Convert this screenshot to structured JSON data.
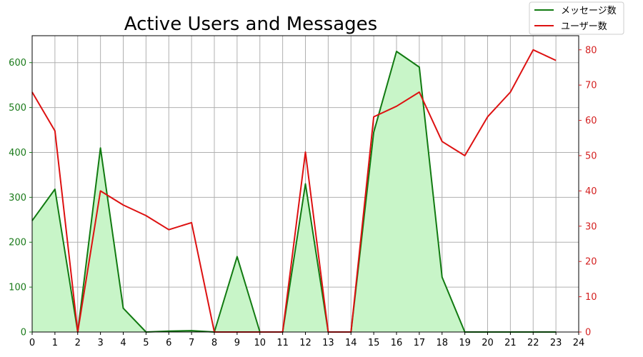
{
  "chart_data": {
    "type": "line",
    "title": "Active Users and Messages",
    "x": [
      0,
      1,
      2,
      3,
      4,
      5,
      6,
      7,
      8,
      9,
      10,
      11,
      12,
      13,
      14,
      15,
      16,
      17,
      18,
      19,
      20,
      21,
      22,
      23
    ],
    "xlim": [
      0,
      24
    ],
    "xticks": [
      0,
      1,
      2,
      3,
      4,
      5,
      6,
      7,
      8,
      9,
      10,
      11,
      12,
      13,
      14,
      15,
      16,
      17,
      18,
      19,
      20,
      21,
      22,
      23,
      24
    ],
    "grid": true,
    "legend_position": "top-right",
    "y_left": {
      "lim": [
        0,
        660
      ],
      "ticks": [
        0,
        100,
        200,
        300,
        400,
        500,
        600
      ],
      "color": "#1a7a1a"
    },
    "y_right": {
      "lim": [
        0,
        84
      ],
      "ticks": [
        0,
        10,
        20,
        30,
        40,
        50,
        60,
        70,
        80
      ],
      "color": "#d42020"
    },
    "series": [
      {
        "name": "メッセージ数",
        "axis": "left",
        "color": "#117a11",
        "fill": "#c8f5c8",
        "values": [
          248,
          318,
          0,
          410,
          53,
          0,
          2,
          3,
          0,
          168,
          0,
          0,
          330,
          0,
          0,
          445,
          625,
          590,
          122,
          0,
          0,
          0,
          0,
          0
        ]
      },
      {
        "name": "ユーザー数",
        "axis": "right",
        "color": "#dd1111",
        "values": [
          68,
          57,
          0,
          40,
          36,
          33,
          29,
          31,
          0,
          0,
          0,
          0,
          51,
          0,
          0,
          61,
          64,
          68,
          54,
          50,
          61,
          68,
          80,
          77
        ]
      }
    ]
  }
}
